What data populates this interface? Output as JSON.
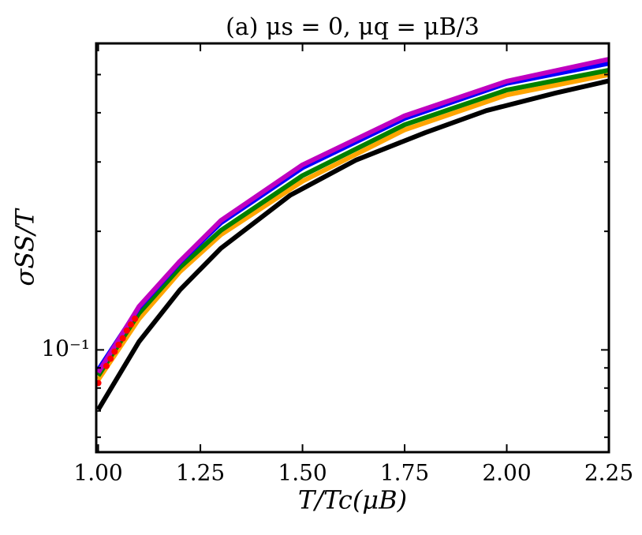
{
  "chart_data": {
    "type": "line",
    "title": "(a) μs = 0, μq = μB/3",
    "xlabel": "T/Tc(μB)",
    "ylabel": "σSS/T",
    "xlim": [
      0.995,
      2.25
    ],
    "xticks": [
      {
        "value": 1.0,
        "label": "1.00"
      },
      {
        "value": 1.25,
        "label": "1.25"
      },
      {
        "value": 1.5,
        "label": "1.50"
      },
      {
        "value": 1.75,
        "label": "1.75"
      },
      {
        "value": 2.0,
        "label": "2.00"
      },
      {
        "value": 2.25,
        "label": "2.25"
      }
    ],
    "ylim": [
      0.055,
      0.6
    ],
    "yscale": "log",
    "yticks": [
      {
        "value": 0.1,
        "label": "10⁻¹"
      }
    ],
    "yminorticks": [
      0.06,
      0.07,
      0.08,
      0.09,
      0.2,
      0.3,
      0.4,
      0.5
    ],
    "series": [
      {
        "color": "#000000",
        "x": [
          1.0,
          1.1,
          1.2,
          1.3,
          1.47,
          1.63,
          1.8,
          1.95,
          2.12,
          2.25
        ],
        "values": [
          0.0705,
          0.105,
          0.142,
          0.181,
          0.247,
          0.303,
          0.356,
          0.405,
          0.449,
          0.482
        ]
      },
      {
        "color": "#ffa500",
        "x": [
          1.0,
          1.1,
          1.2,
          1.3,
          1.5,
          1.75,
          2.0,
          2.25
        ],
        "values": [
          0.084,
          0.12,
          0.158,
          0.196,
          0.268,
          0.362,
          0.444,
          0.5
        ]
      },
      {
        "color": "#008000",
        "x": [
          1.0,
          1.1,
          1.2,
          1.3,
          1.5,
          1.75,
          2.0,
          2.25
        ],
        "values": [
          0.086,
          0.124,
          0.162,
          0.201,
          0.277,
          0.373,
          0.457,
          0.513
        ]
      },
      {
        "color": "#0000ff",
        "x": [
          1.0,
          1.1,
          1.2,
          1.3,
          1.5,
          1.75,
          2.0,
          2.25
        ],
        "values": [
          0.089,
          0.128,
          0.167,
          0.21,
          0.29,
          0.387,
          0.475,
          0.534
        ]
      },
      {
        "color": "#c000c0",
        "x": [
          1.0,
          1.1,
          1.2,
          1.3,
          1.5,
          1.75,
          2.0,
          2.25
        ],
        "values": [
          0.0875,
          0.129,
          0.168,
          0.213,
          0.295,
          0.393,
          0.481,
          0.547
        ]
      },
      {
        "color": "#ff0000",
        "marker": "dot",
        "x": [
          1.0,
          1.02,
          1.03,
          1.04,
          1.05,
          1.06,
          1.07,
          1.08,
          1.09
        ],
        "values": [
          0.0824,
          0.091,
          0.095,
          0.099,
          0.103,
          0.107,
          0.112,
          0.116,
          0.12
        ]
      }
    ]
  }
}
